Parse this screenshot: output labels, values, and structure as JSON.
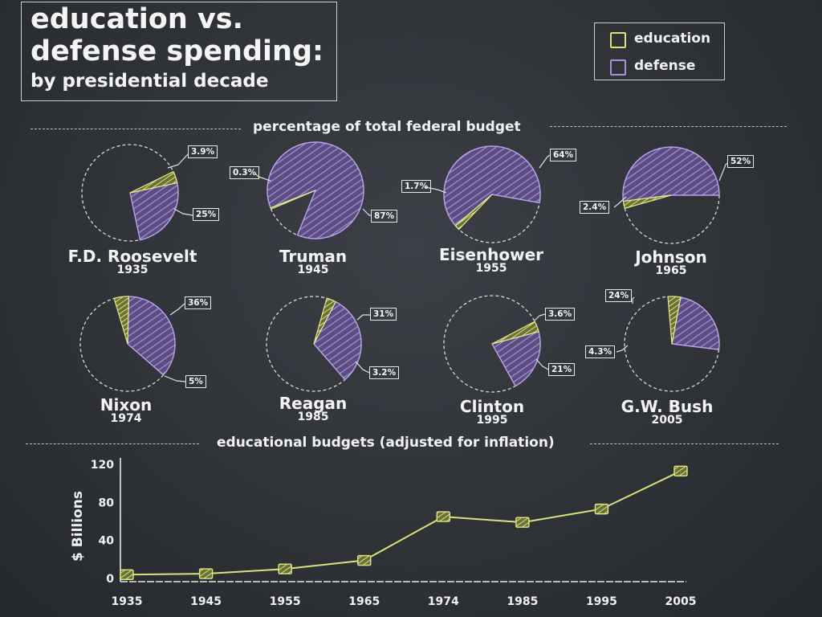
{
  "title": {
    "line1": "education vs.",
    "line2": "defense spending:",
    "line3": "by presidential decade"
  },
  "legend": {
    "education": "education",
    "defense": "defense"
  },
  "colors": {
    "education": "#d9e37a",
    "defense": "#a98ee0",
    "background": "#2e3136"
  },
  "pie_section_title": "percentage of total federal budget",
  "line_section_title": "educational budgets (adjusted for inflation)",
  "presidents": [
    {
      "name": "F.D. Roosevelt",
      "year": "1935",
      "education_label": "3.9%",
      "defense_label": "25%"
    },
    {
      "name": "Truman",
      "year": "1945",
      "education_label": "0.3%",
      "defense_label": "87%"
    },
    {
      "name": "Eisenhower",
      "year": "1955",
      "education_label": "1.7%",
      "defense_label": "64%"
    },
    {
      "name": "Johnson",
      "year": "1965",
      "education_label": "2.4%",
      "defense_label": "52%"
    },
    {
      "name": "Nixon",
      "year": "1974",
      "education_label": "5%",
      "defense_label": "36%"
    },
    {
      "name": "Reagan",
      "year": "1985",
      "education_label": "3.2%",
      "defense_label": "31%"
    },
    {
      "name": "Clinton",
      "year": "1995",
      "education_label": "3.6%",
      "defense_label": "21%"
    },
    {
      "name": "G.W. Bush",
      "year": "2005",
      "education_label": "4.3%",
      "defense_label": "24%"
    }
  ],
  "chart_data": [
    {
      "type": "pie",
      "title": "percentage of total federal budget",
      "charts": [
        {
          "name": "F.D. Roosevelt",
          "year": "1935",
          "education": 3.9,
          "defense": 25
        },
        {
          "name": "Truman",
          "year": "1945",
          "education": 0.3,
          "defense": 87
        },
        {
          "name": "Eisenhower",
          "year": "1955",
          "education": 1.7,
          "defense": 64
        },
        {
          "name": "Johnson",
          "year": "1965",
          "education": 2.4,
          "defense": 52
        },
        {
          "name": "Nixon",
          "year": "1974",
          "education": 5,
          "defense": 36
        },
        {
          "name": "Reagan",
          "year": "1985",
          "education": 3.2,
          "defense": 31
        },
        {
          "name": "Clinton",
          "year": "1995",
          "education": 3.6,
          "defense": 21
        },
        {
          "name": "G.W. Bush",
          "year": "2005",
          "education": 4.3,
          "defense": 24
        }
      ]
    },
    {
      "type": "line",
      "title": "educational budgets (adjusted for inflation)",
      "ylabel": "$ Billions",
      "xlabel": "",
      "x": [
        "1935",
        "1945",
        "1955",
        "1965",
        "1974",
        "1985",
        "1995",
        "2005"
      ],
      "series": [
        {
          "values": [
            4,
            5,
            10,
            19,
            65,
            59,
            73,
            113
          ]
        }
      ],
      "yticks": [
        0,
        40,
        80,
        120
      ],
      "ylim": [
        0,
        120
      ]
    }
  ]
}
